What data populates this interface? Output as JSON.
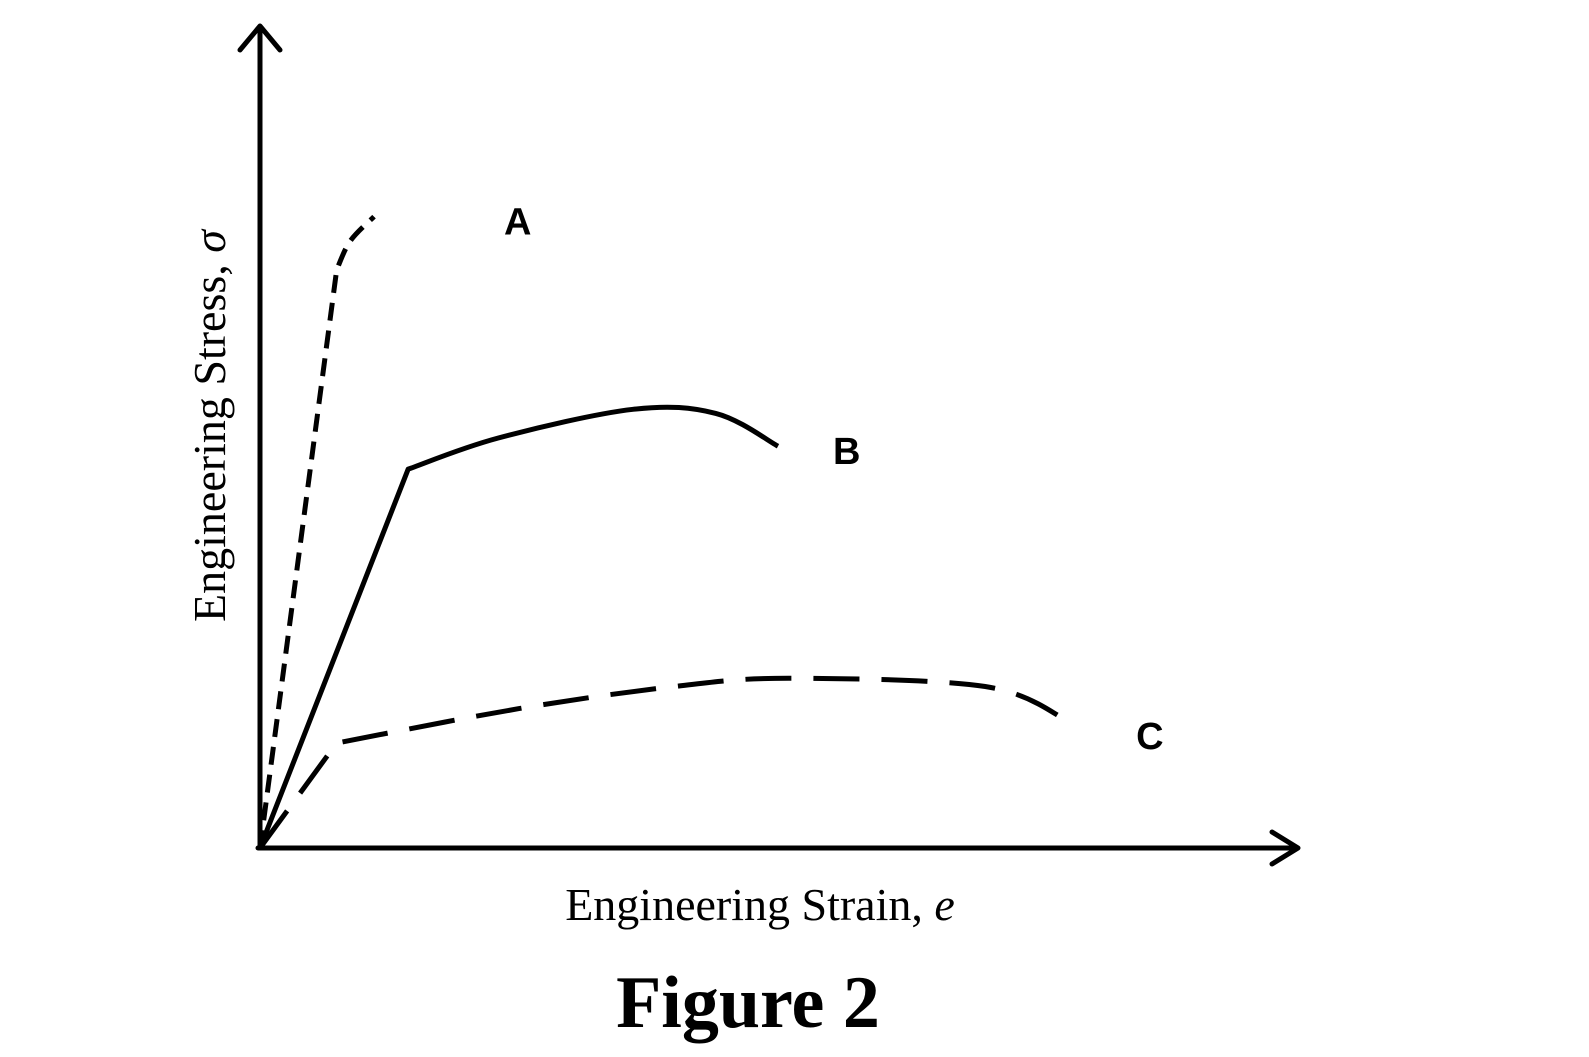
{
  "chart_data": {
    "type": "line",
    "title": "",
    "caption": "Figure 2",
    "xlabel": {
      "text": "Engineering Strain, ",
      "symbol": "e"
    },
    "ylabel": {
      "text": "Engineering Stress, ",
      "symbol": "σ"
    },
    "xlim": [
      0,
      1
    ],
    "ylim": [
      0,
      1
    ],
    "grid": false,
    "legend": "none",
    "series": [
      {
        "name": "A",
        "style": "short-dash",
        "points": [
          [
            0,
            0
          ],
          [
            0.074,
            0.705
          ],
          [
            0.087,
            0.74
          ],
          [
            0.11,
            0.77
          ]
        ]
      },
      {
        "name": "B",
        "style": "solid",
        "points": [
          [
            0,
            0
          ],
          [
            0.143,
            0.462
          ],
          [
            0.23,
            0.5
          ],
          [
            0.36,
            0.535
          ],
          [
            0.44,
            0.53
          ],
          [
            0.5,
            0.49
          ]
        ]
      },
      {
        "name": "C",
        "style": "long-dash",
        "points": [
          [
            0,
            0
          ],
          [
            0.074,
            0.128
          ],
          [
            0.25,
            0.17
          ],
          [
            0.4,
            0.197
          ],
          [
            0.51,
            0.207
          ],
          [
            0.7,
            0.197
          ],
          [
            0.78,
            0.155
          ]
        ]
      }
    ]
  }
}
